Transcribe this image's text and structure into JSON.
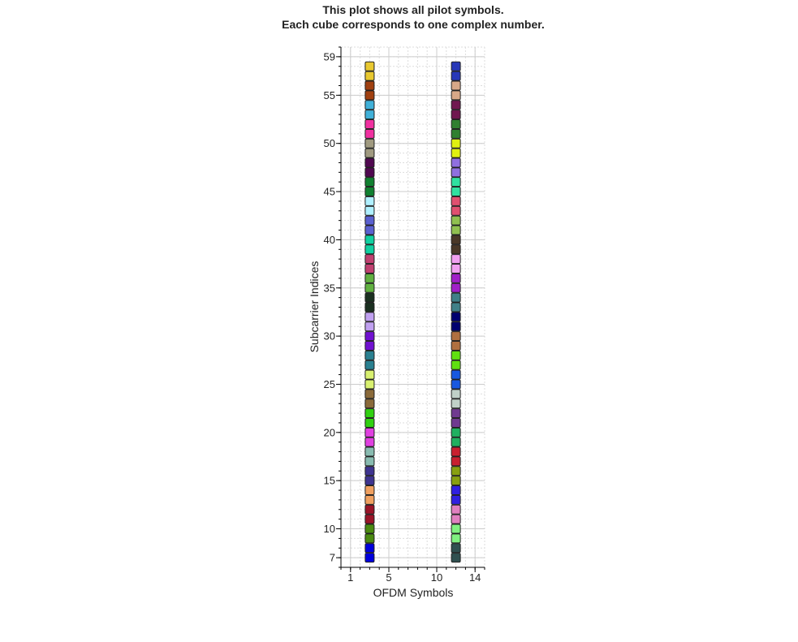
{
  "chart_data": {
    "type": "scatter",
    "title": [
      "This plot shows all pilot symbols.",
      "Each cube corresponds to one complex number."
    ],
    "xlabel": "OFDM Symbols",
    "ylabel": "Subcarrier Indices",
    "xlim": [
      0,
      15
    ],
    "ylim": [
      6,
      60
    ],
    "xticks": [
      1,
      5,
      10,
      14
    ],
    "yticks": [
      7,
      10,
      15,
      20,
      25,
      30,
      35,
      40,
      45,
      50,
      55,
      59
    ],
    "grid": true,
    "minor_grid": true,
    "marker": "square",
    "series": [
      {
        "x": [
          3,
          3,
          3,
          3,
          3,
          3,
          3,
          3,
          3,
          3,
          3,
          3,
          3,
          3,
          3,
          3,
          3,
          3,
          3,
          3,
          3,
          3,
          3,
          3,
          3,
          3,
          3,
          3,
          3,
          3,
          3,
          3,
          3,
          3,
          3,
          3,
          3,
          3,
          3,
          3,
          3,
          3,
          3,
          3,
          3,
          3,
          3,
          3,
          3,
          3,
          3,
          3
        ],
        "values": [
          7,
          8,
          9,
          10,
          11,
          12,
          13,
          14,
          15,
          16,
          17,
          18,
          19,
          20,
          21,
          22,
          23,
          24,
          25,
          26,
          27,
          28,
          29,
          30,
          31,
          32,
          33,
          34,
          35,
          36,
          37,
          38,
          39,
          40,
          41,
          42,
          43,
          44,
          45,
          46,
          47,
          48,
          49,
          50,
          51,
          52,
          53,
          54,
          55,
          56,
          57,
          58
        ],
        "colors": [
          "#0000dd",
          "#0000dd",
          "#4a8a10",
          "#4a8a10",
          "#9a1428",
          "#9a1428",
          "#f0a060",
          "#f0a060",
          "#3e3490",
          "#3e3490",
          "#88bbb0",
          "#88bbb0",
          "#e040e0",
          "#e040e0",
          "#30d010",
          "#30d010",
          "#8a6a3a",
          "#8a6a3a",
          "#d8f070",
          "#d8f070",
          "#2a8090",
          "#2a8090",
          "#7010d0",
          "#7010d0",
          "#c0a0f0",
          "#c0a0f0",
          "#1a3020",
          "#1a3020",
          "#60b040",
          "#60b040",
          "#c04070",
          "#c04070",
          "#10d0a0",
          "#10d0a0",
          "#5a60d0",
          "#5a60d0",
          "#b0f0ff",
          "#b0f0ff",
          "#108030",
          "#108030",
          "#500850",
          "#500850",
          "#a09a80",
          "#a09a80",
          "#f030a0",
          "#f030a0",
          "#40b0d8",
          "#40b0d8",
          "#a04010",
          "#a04010",
          "#e8c830",
          "#e8c830"
        ]
      },
      {
        "x": [
          12,
          12,
          12,
          12,
          12,
          12,
          12,
          12,
          12,
          12,
          12,
          12,
          12,
          12,
          12,
          12,
          12,
          12,
          12,
          12,
          12,
          12,
          12,
          12,
          12,
          12,
          12,
          12,
          12,
          12,
          12,
          12,
          12,
          12,
          12,
          12,
          12,
          12,
          12,
          12,
          12,
          12,
          12,
          12,
          12,
          12,
          12,
          12,
          12,
          12,
          12,
          12
        ],
        "values": [
          7,
          8,
          9,
          10,
          11,
          12,
          13,
          14,
          15,
          16,
          17,
          18,
          19,
          20,
          21,
          22,
          23,
          24,
          25,
          26,
          27,
          28,
          29,
          30,
          31,
          32,
          33,
          34,
          35,
          36,
          37,
          38,
          39,
          40,
          41,
          42,
          43,
          44,
          45,
          46,
          47,
          48,
          49,
          50,
          51,
          52,
          53,
          54,
          55,
          56,
          57,
          58
        ],
        "colors": [
          "#305050",
          "#305050",
          "#80f080",
          "#80f080",
          "#e080c0",
          "#e080c0",
          "#3020e0",
          "#3020e0",
          "#88a010",
          "#88a010",
          "#c82030",
          "#c82030",
          "#20b060",
          "#20b060",
          "#703a90",
          "#703a90",
          "#c0d0c8",
          "#c0d0c8",
          "#1858e0",
          "#1858e0",
          "#60e010",
          "#60e010",
          "#b07040",
          "#b07040",
          "#000070",
          "#000070",
          "#408088",
          "#408088",
          "#a020c8",
          "#a020c8",
          "#f0a0f0",
          "#f0a0f0",
          "#4a3828",
          "#4a3828",
          "#90c050",
          "#90c050",
          "#e05070",
          "#e05070",
          "#30e0a0",
          "#30e0a0",
          "#9070e0",
          "#9070e0",
          "#e0f010",
          "#e0f010",
          "#308030",
          "#308030",
          "#701850",
          "#701850",
          "#d8a888",
          "#d8a888",
          "#2838b8",
          "#2838b8"
        ]
      }
    ]
  }
}
